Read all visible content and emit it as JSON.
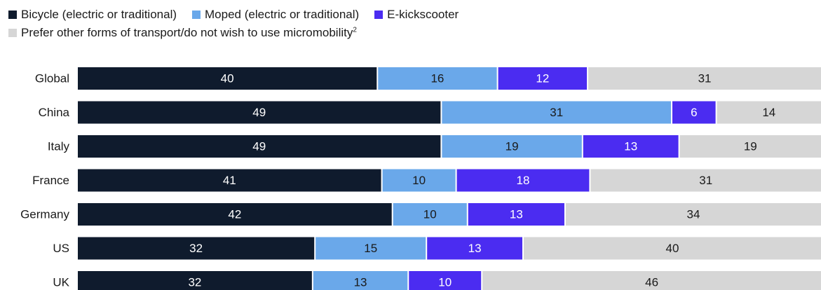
{
  "legend": [
    {
      "key": "bicycle",
      "label": "Bicycle (electric or traditional)",
      "color": "#0f1b2d"
    },
    {
      "key": "moped",
      "label": "Moped (electric or traditional)",
      "color": "#6aa8ea"
    },
    {
      "key": "ekick",
      "label": "E-kickscooter",
      "color": "#4b2cf1"
    },
    {
      "key": "other",
      "label": "Prefer other forms of transport/do not wish to use micromobility",
      "label_sup": "2",
      "color": "#d6d6d6"
    }
  ],
  "chart_data": {
    "type": "bar",
    "orientation": "horizontal",
    "stacked": true,
    "categories": [
      "Global",
      "China",
      "Italy",
      "France",
      "Germany",
      "US",
      "UK"
    ],
    "series": [
      {
        "name": "Bicycle (electric or traditional)",
        "color": "#0f1b2d",
        "text_color": "#ffffff",
        "values": [
          40,
          49,
          49,
          41,
          42,
          32,
          32
        ]
      },
      {
        "name": "Moped (electric or traditional)",
        "color": "#6aa8ea",
        "text_color": "#1a1a1a",
        "values": [
          16,
          31,
          19,
          10,
          10,
          15,
          13
        ]
      },
      {
        "name": "E-kickscooter",
        "color": "#4b2cf1",
        "text_color": "#ffffff",
        "values": [
          12,
          6,
          13,
          18,
          13,
          13,
          10
        ]
      },
      {
        "name": "Prefer other forms of transport/do not wish to use micromobility",
        "color": "#d6d6d6",
        "text_color": "#1a1a1a",
        "values": [
          31,
          14,
          19,
          31,
          34,
          40,
          46
        ]
      }
    ],
    "xlim": [
      0,
      100
    ],
    "legend_position": "top-left",
    "grid": false
  }
}
